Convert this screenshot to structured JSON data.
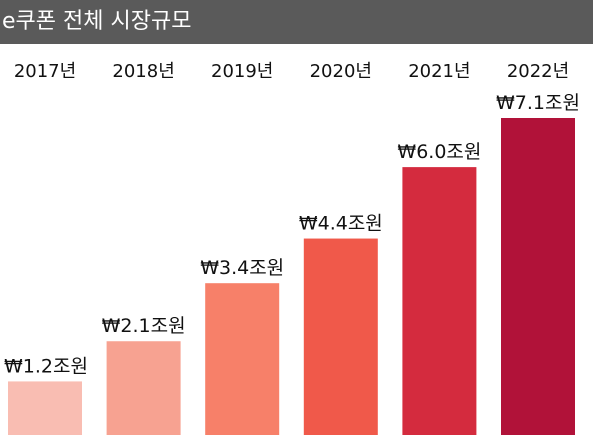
{
  "header": {
    "title": "e쿠폰 전체 시장규모"
  },
  "chart_data": {
    "type": "bar",
    "title": "e쿠폰 전체 시장규모",
    "categories": [
      "2017년",
      "2018년",
      "2019년",
      "2020년",
      "2021년",
      "2022년"
    ],
    "values": [
      1.2,
      2.1,
      3.4,
      4.4,
      6.0,
      7.1
    ],
    "value_labels": [
      "₩1.2조원",
      "₩2.1조원",
      "₩3.4조원",
      "₩4.4조원",
      "₩6.0조원",
      "₩7.1조원"
    ],
    "colors": [
      "#f9bdb2",
      "#f7a291",
      "#f78069",
      "#f0594a",
      "#d42b3e",
      "#b11239"
    ],
    "ylim": [
      0,
      7.1
    ],
    "grid": false,
    "legend": "none",
    "category_label_position": "top"
  }
}
